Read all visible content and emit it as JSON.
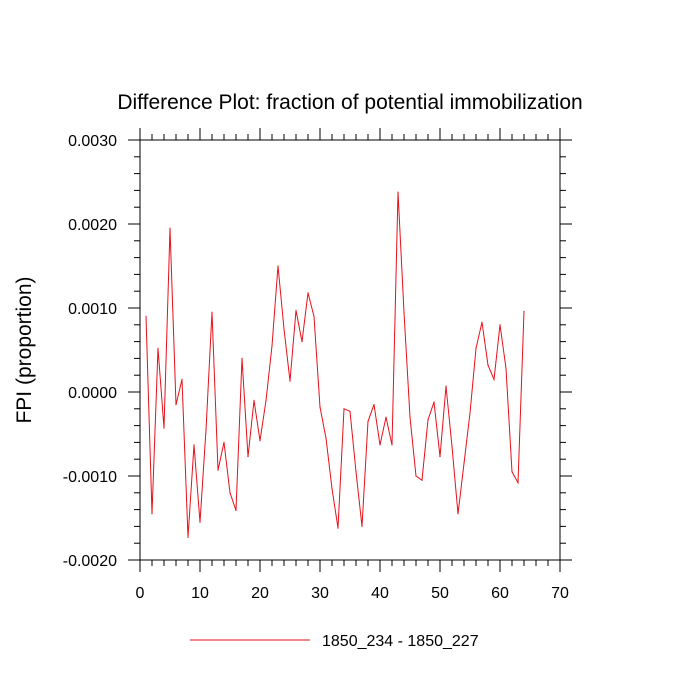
{
  "chart_data": {
    "type": "line",
    "title": "Difference Plot: fraction of potential immobilization",
    "xlabel": "",
    "ylabel": "FPI  (proportion)",
    "xlim": [
      0,
      70
    ],
    "ylim": [
      -0.002,
      0.003
    ],
    "xticks": [
      0,
      10,
      20,
      30,
      40,
      50,
      60,
      70
    ],
    "xtick_labels": [
      "0",
      "10",
      "20",
      "30",
      "40",
      "50",
      "60",
      "70"
    ],
    "yticks": [
      -0.002,
      -0.001,
      0.0,
      0.001,
      0.002,
      0.003
    ],
    "ytick_labels": [
      "-0.0020",
      "-0.0010",
      "0.0000",
      "0.0010",
      "0.0020",
      "0.0030"
    ],
    "grid": false,
    "legend_position": "bottom-center",
    "series": [
      {
        "name": "1850_234 - 1850_227",
        "color": "#e8101a",
        "x": [
          1,
          2,
          3,
          4,
          5,
          6,
          7,
          8,
          9,
          10,
          11,
          12,
          13,
          14,
          15,
          16,
          17,
          18,
          19,
          20,
          21,
          22,
          23,
          24,
          25,
          26,
          27,
          28,
          29,
          30,
          31,
          32,
          33,
          34,
          35,
          36,
          37,
          38,
          39,
          40,
          41,
          42,
          43,
          44,
          45,
          46,
          47,
          48,
          49,
          50,
          51,
          52,
          53,
          54,
          55,
          56,
          57,
          58,
          59,
          60,
          61,
          62,
          63,
          64
        ],
        "y": [
          0.0009,
          -0.00145,
          0.00052,
          -0.00043,
          0.00195,
          -0.00015,
          0.00015,
          -0.00173,
          -0.00063,
          -0.00155,
          -0.00045,
          0.00095,
          -0.00093,
          -0.0006,
          -0.0012,
          -0.00141,
          0.0004,
          -0.00077,
          -0.0001,
          -0.00058,
          -0.0001,
          0.00055,
          0.0015,
          0.00075,
          0.00013,
          0.00097,
          0.0006,
          0.00118,
          0.0009,
          -0.00018,
          -0.00055,
          -0.00115,
          -0.00162,
          -0.0002,
          -0.00023,
          -0.00095,
          -0.0016,
          -0.00035,
          -0.00015,
          -0.00063,
          -0.0003,
          -0.00063,
          0.00238,
          0.00095,
          -0.0003,
          -0.001,
          -0.00105,
          -0.00033,
          -0.00012,
          -0.00077,
          7e-05,
          -0.00065,
          -0.00145,
          -0.00085,
          -0.00025,
          0.00052,
          0.00083,
          0.00032,
          0.00015,
          0.0008,
          0.00028,
          -0.00095,
          -0.00108,
          0.00096
        ]
      }
    ]
  }
}
